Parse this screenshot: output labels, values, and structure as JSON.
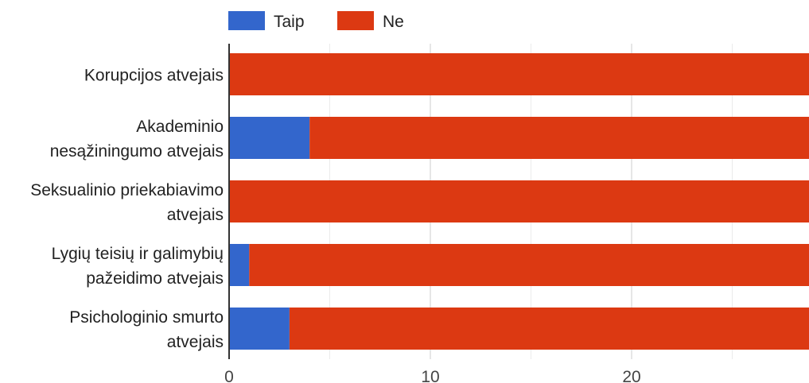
{
  "chart_data": {
    "type": "bar",
    "orientation": "horizontal",
    "stacked": true,
    "categories": [
      [
        "Korupcijos atvejais"
      ],
      [
        "Akademinio",
        "nesąžiningumo atvejais"
      ],
      [
        "Seksualinio priekabiavimo",
        "atvejais"
      ],
      [
        "Lygių teisių ir galimybių",
        "pažeidimo atvejais"
      ],
      [
        "Psichologinio smurto",
        "atvejais"
      ]
    ],
    "series": [
      {
        "name": "Taip",
        "color": "#3366cc",
        "values": [
          0,
          4,
          0,
          1,
          3
        ]
      },
      {
        "name": "Ne",
        "color": "#dc3912",
        "values": [
          29,
          25,
          29,
          28,
          26
        ]
      }
    ],
    "xlim": [
      0,
      29
    ],
    "xticks": [
      0,
      10,
      20
    ],
    "grid": true,
    "legend_position": "top"
  }
}
